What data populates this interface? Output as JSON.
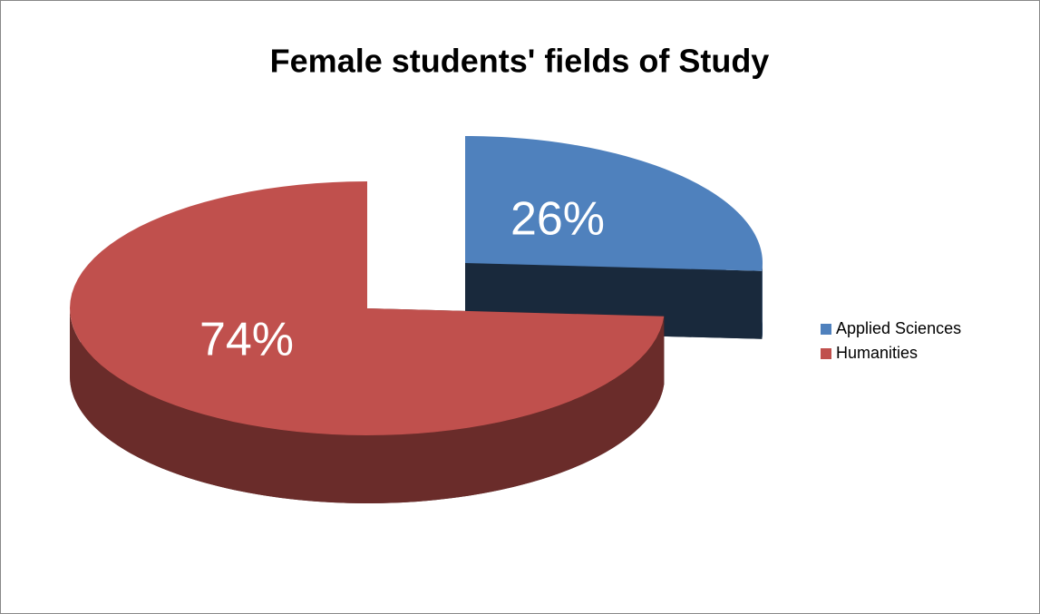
{
  "chart_data": {
    "type": "pie",
    "title": "Female students' fields of Study",
    "categories": [
      "Applied Sciences",
      "Humanities"
    ],
    "values": [
      26,
      74
    ],
    "value_labels": [
      "26%",
      "74%"
    ],
    "colors": [
      "#4f81bd",
      "#c0504d"
    ],
    "legend": "right"
  }
}
